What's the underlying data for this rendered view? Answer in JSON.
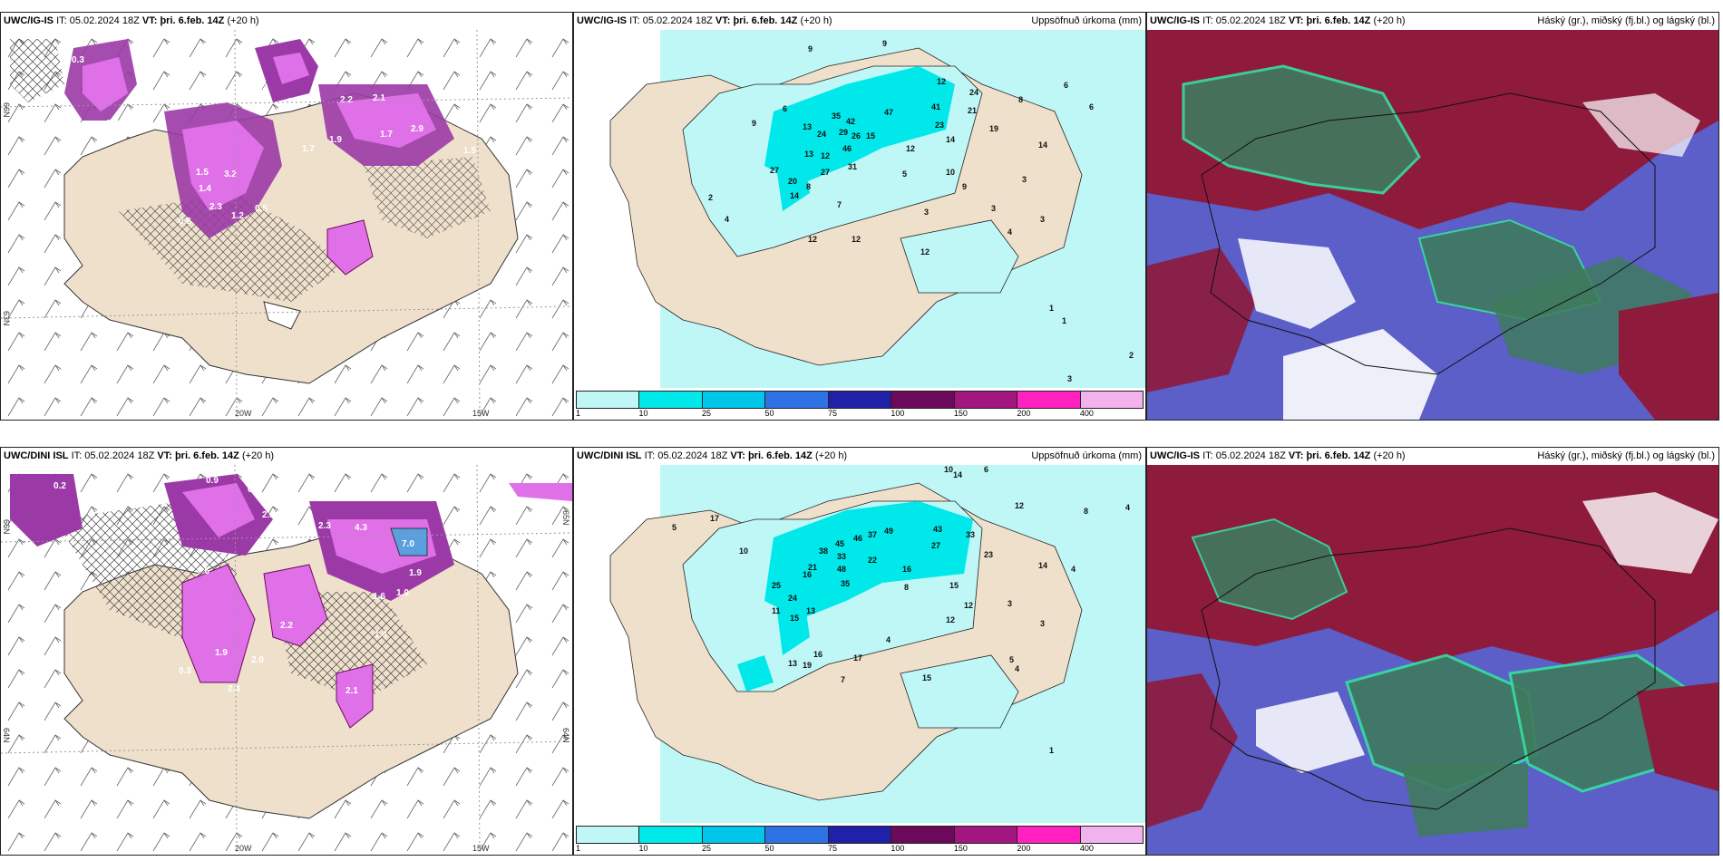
{
  "rows": [
    {
      "model": "UWC/IG-IS",
      "it_label": "IT:",
      "it_value": "05.02.2024 18Z",
      "vt_label": "VT:",
      "vt_value": "þri. 6.feb. 14Z",
      "lead": "(+20 h)"
    },
    {
      "model": "UWC/DINI ISL",
      "it_label": "IT:",
      "it_value": "05.02.2024 18Z",
      "vt_label": "VT:",
      "vt_value": "þri. 6.feb. 14Z",
      "lead": "(+20 h)"
    }
  ],
  "precip_title": "Uppsöfnuð úrkoma (mm)",
  "cloud_title": "Háský (gr.), miðský (fj.bl.) og lágský (bl.)",
  "colorbar": {
    "ticks": [
      "1",
      "10",
      "25",
      "50",
      "75",
      "100",
      "150",
      "200",
      "400"
    ],
    "colors": [
      "#bff7f7",
      "#00e8ea",
      "#00c6ea",
      "#2e72e6",
      "#2020a8",
      "#6b0a5a",
      "#a3157f",
      "#ff22c0",
      "#f2b2ee"
    ]
  },
  "left_axes": {
    "lon_labels": [
      "20W",
      "15W"
    ],
    "lat_labels_left": [
      "66N",
      "64N",
      "63N"
    ],
    "lat_labels_right": [
      "65N",
      "64N"
    ]
  },
  "top_left_values": [
    "0.3",
    "0.3",
    "0.3",
    "2.7",
    "2.2",
    "2.1",
    "2.9",
    "1.7",
    "1.5",
    "1.9",
    "1.5",
    "3.2",
    "1.4",
    "2.3",
    "0.6",
    "0.5",
    "1.7",
    "1.2",
    "0.8",
    "0.6"
  ],
  "bottom_left_values": [
    "0.2",
    "0.9",
    "0.8",
    "1.5",
    "2.2",
    "2.3",
    "4.3",
    "7.0",
    "1.9",
    "1.0",
    "0.6",
    "0.4",
    "2.0",
    "1.9",
    "1.4",
    "2.4",
    "2.1",
    "2.2",
    "0.3",
    "1.6"
  ],
  "top_precip_values": [
    "9",
    "9",
    "12",
    "24",
    "21",
    "19",
    "13",
    "24",
    "35",
    "47",
    "41",
    "42",
    "23",
    "26",
    "46",
    "14",
    "13",
    "12",
    "27",
    "29",
    "31",
    "6",
    "15",
    "9",
    "12",
    "27",
    "20",
    "8",
    "10",
    "14",
    "5",
    "7",
    "9",
    "12",
    "12",
    "3",
    "3",
    "12",
    "2",
    "4",
    "3",
    "1",
    "1",
    "2",
    "3",
    "4",
    "3",
    "6",
    "6",
    "8",
    "14"
  ],
  "bottom_precip_values": [
    "10",
    "14",
    "6",
    "8",
    "4",
    "12",
    "17",
    "10",
    "5",
    "43",
    "33",
    "46",
    "37",
    "49",
    "27",
    "23",
    "45",
    "33",
    "16",
    "22",
    "21",
    "38",
    "48",
    "35",
    "24",
    "25",
    "16",
    "13",
    "15",
    "11",
    "8",
    "15",
    "12",
    "12",
    "14",
    "17",
    "16",
    "19",
    "13",
    "15",
    "7",
    "4",
    "5",
    "3",
    "1",
    "3",
    "4",
    "4"
  ]
}
